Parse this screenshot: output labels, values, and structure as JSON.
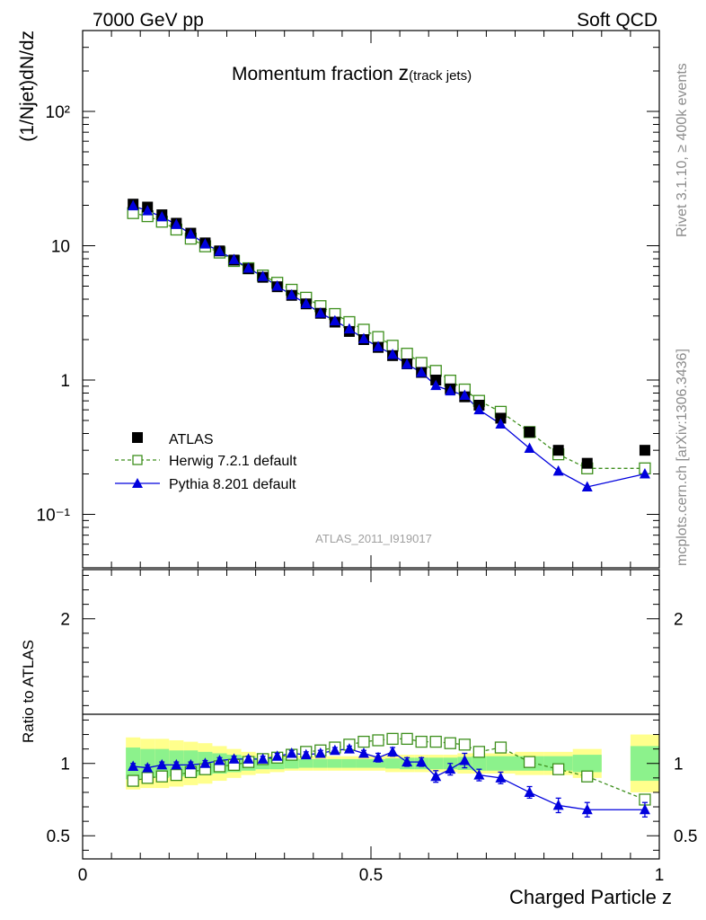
{
  "header": {
    "left": "7000 GeV pp",
    "right": "Soft QCD"
  },
  "side_text": {
    "rivet": "Rivet 3.1.10, ≥ 400k events",
    "mcplots": "mcplots.cern.ch [arXiv:1306.3436]"
  },
  "colors": {
    "atlas": "#000000",
    "herwig": "#3d8f1c",
    "pythia": "#0000dd",
    "band_inner": "#8cf28c",
    "band_outer": "#ffff8c"
  },
  "chart_data": [
    {
      "type": "scatter",
      "title_main": "Momentum fraction ",
      "title_z": "z",
      "title_sub": "(track jets)",
      "analysis_label": "ATLAS_2011_I919017",
      "xlabel": "Charged Particle z",
      "ylabel": "(1/Njet)dN/dz",
      "xlim": [
        0,
        1
      ],
      "ylim": [
        0.04,
        400
      ],
      "yscale": "log",
      "x_ticks": [
        "0",
        "0.5",
        "1"
      ],
      "y_ticks": [
        "10⁻¹",
        "1",
        "10",
        "10²"
      ],
      "legend_position": "middle-left",
      "series": [
        {
          "name": "ATLAS",
          "marker": "filled-square",
          "x": [
            0.0875,
            0.1125,
            0.1375,
            0.1625,
            0.1875,
            0.2125,
            0.2375,
            0.2625,
            0.2875,
            0.3125,
            0.3375,
            0.3625,
            0.3875,
            0.4125,
            0.4375,
            0.4625,
            0.4875,
            0.5125,
            0.5375,
            0.5625,
            0.5875,
            0.6125,
            0.6375,
            0.6625,
            0.6875,
            0.725,
            0.775,
            0.825,
            0.875,
            0.975
          ],
          "values": [
            20.4,
            19.4,
            17.0,
            14.7,
            12.4,
            10.5,
            9.15,
            7.82,
            6.74,
            5.82,
            4.95,
            4.27,
            3.69,
            3.14,
            2.7,
            2.3,
            2.0,
            1.75,
            1.52,
            1.32,
            1.14,
            1.0,
            0.86,
            0.75,
            0.65,
            0.52,
            0.41,
            0.3,
            0.24,
            0.3
          ]
        },
        {
          "name": "Herwig 7.2.1 default",
          "marker": "open-square",
          "line": "dashed",
          "x": [
            0.0875,
            0.1125,
            0.1375,
            0.1625,
            0.1875,
            0.2125,
            0.2375,
            0.2625,
            0.2875,
            0.3125,
            0.3375,
            0.3625,
            0.3875,
            0.4125,
            0.4375,
            0.4625,
            0.4875,
            0.5125,
            0.5375,
            0.5625,
            0.5875,
            0.6125,
            0.6375,
            0.6625,
            0.6875,
            0.725,
            0.775,
            0.825,
            0.875,
            0.975
          ],
          "values": [
            17.5,
            16.6,
            15.1,
            13.2,
            11.3,
            9.9,
            8.9,
            7.7,
            6.8,
            6.0,
            5.3,
            4.7,
            4.1,
            3.55,
            3.1,
            2.7,
            2.37,
            2.09,
            1.8,
            1.57,
            1.34,
            1.17,
            0.99,
            0.85,
            0.7,
            0.58,
            0.41,
            0.28,
            0.22,
            0.22
          ]
        },
        {
          "name": "Pythia 8.201 default",
          "marker": "filled-triangle",
          "line": "solid",
          "x": [
            0.0875,
            0.1125,
            0.1375,
            0.1625,
            0.1875,
            0.2125,
            0.2375,
            0.2625,
            0.2875,
            0.3125,
            0.3375,
            0.3625,
            0.3875,
            0.4125,
            0.4375,
            0.4625,
            0.4875,
            0.5125,
            0.5375,
            0.5625,
            0.5875,
            0.6125,
            0.6375,
            0.6625,
            0.6875,
            0.725,
            0.775,
            0.825,
            0.875,
            0.975
          ],
          "values": [
            19.8,
            18.2,
            16.4,
            14.4,
            12.2,
            10.3,
            9.1,
            7.9,
            6.8,
            5.9,
            5.0,
            4.3,
            3.7,
            3.15,
            2.76,
            2.4,
            2.03,
            1.77,
            1.55,
            1.31,
            1.14,
            0.91,
            0.83,
            0.77,
            0.6,
            0.47,
            0.31,
            0.21,
            0.16,
            0.2
          ]
        }
      ]
    },
    {
      "type": "scatter",
      "role": "ratio",
      "ylabel": "Ratio to ATLAS",
      "xlabel": "Charged Particle z",
      "xlim": [
        0,
        1
      ],
      "ylim": [
        0.34,
        2.34
      ],
      "y_ticks": [
        "0.5",
        "1",
        "2"
      ],
      "reference_line": 1,
      "bands": {
        "edges": [
          0.075,
          0.1,
          0.125,
          0.15,
          0.175,
          0.2,
          0.225,
          0.25,
          0.275,
          0.3,
          0.325,
          0.35,
          0.375,
          0.4,
          0.425,
          0.45,
          0.475,
          0.5,
          0.525,
          0.55,
          0.575,
          0.6,
          0.625,
          0.65,
          0.675,
          0.7,
          0.75,
          0.8,
          0.85,
          0.9,
          0.95,
          1.0
        ],
        "inner": [
          0.11,
          0.1,
          0.1,
          0.09,
          0.09,
          0.08,
          0.07,
          0.06,
          0.05,
          0.04,
          0.04,
          0.035,
          0.03,
          0.03,
          0.03,
          0.03,
          0.03,
          0.03,
          0.035,
          0.04,
          0.04,
          0.04,
          0.04,
          0.045,
          0.05,
          0.05,
          0.05,
          0.05,
          0.06,
          null,
          0.12
        ],
        "outer": [
          0.18,
          0.17,
          0.17,
          0.16,
          0.15,
          0.14,
          0.12,
          0.1,
          0.08,
          0.07,
          0.06,
          0.05,
          0.05,
          0.05,
          0.05,
          0.05,
          0.05,
          0.05,
          0.06,
          0.06,
          0.06,
          0.06,
          0.06,
          0.07,
          0.07,
          0.07,
          0.08,
          0.08,
          0.1,
          null,
          0.2
        ]
      },
      "series": [
        {
          "name": "Herwig 7.2.1 default",
          "marker": "open-square",
          "line": "dashed",
          "x": [
            0.0875,
            0.1125,
            0.1375,
            0.1625,
            0.1875,
            0.2125,
            0.2375,
            0.2625,
            0.2875,
            0.3125,
            0.3375,
            0.3625,
            0.3875,
            0.4125,
            0.4375,
            0.4625,
            0.4875,
            0.5125,
            0.5375,
            0.5625,
            0.5875,
            0.6125,
            0.6375,
            0.6625,
            0.6875,
            0.725,
            0.775,
            0.825,
            0.875,
            0.975
          ],
          "values": [
            0.88,
            0.9,
            0.91,
            0.92,
            0.94,
            0.96,
            0.98,
            0.99,
            1.01,
            1.03,
            1.04,
            1.06,
            1.08,
            1.09,
            1.11,
            1.13,
            1.15,
            1.16,
            1.17,
            1.17,
            1.15,
            1.15,
            1.14,
            1.13,
            1.08,
            1.11,
            1.01,
            0.96,
            0.91,
            0.75
          ]
        },
        {
          "name": "Pythia 8.201 default",
          "marker": "filled-triangle",
          "line": "solid",
          "x": [
            0.0875,
            0.1125,
            0.1375,
            0.1625,
            0.1875,
            0.2125,
            0.2375,
            0.2625,
            0.2875,
            0.3125,
            0.3375,
            0.3625,
            0.3875,
            0.4125,
            0.4375,
            0.4625,
            0.4875,
            0.5125,
            0.5375,
            0.5625,
            0.5875,
            0.6125,
            0.6375,
            0.6625,
            0.6875,
            0.725,
            0.775,
            0.825,
            0.875,
            0.975
          ],
          "values": [
            0.98,
            0.97,
            0.99,
            0.99,
            0.99,
            1.0,
            1.02,
            1.03,
            1.03,
            1.03,
            1.05,
            1.07,
            1.06,
            1.07,
            1.09,
            1.1,
            1.07,
            1.04,
            1.08,
            1.01,
            1.01,
            0.91,
            0.96,
            1.02,
            0.92,
            0.9,
            0.8,
            0.71,
            0.68,
            0.68
          ],
          "errors": [
            0.02,
            0.02,
            0.02,
            0.02,
            0.02,
            0.02,
            0.02,
            0.02,
            0.02,
            0.02,
            0.02,
            0.02,
            0.02,
            0.02,
            0.02,
            0.02,
            0.02,
            0.03,
            0.03,
            0.03,
            0.03,
            0.04,
            0.04,
            0.05,
            0.04,
            0.04,
            0.04,
            0.05,
            0.05,
            0.05
          ]
        }
      ]
    }
  ]
}
